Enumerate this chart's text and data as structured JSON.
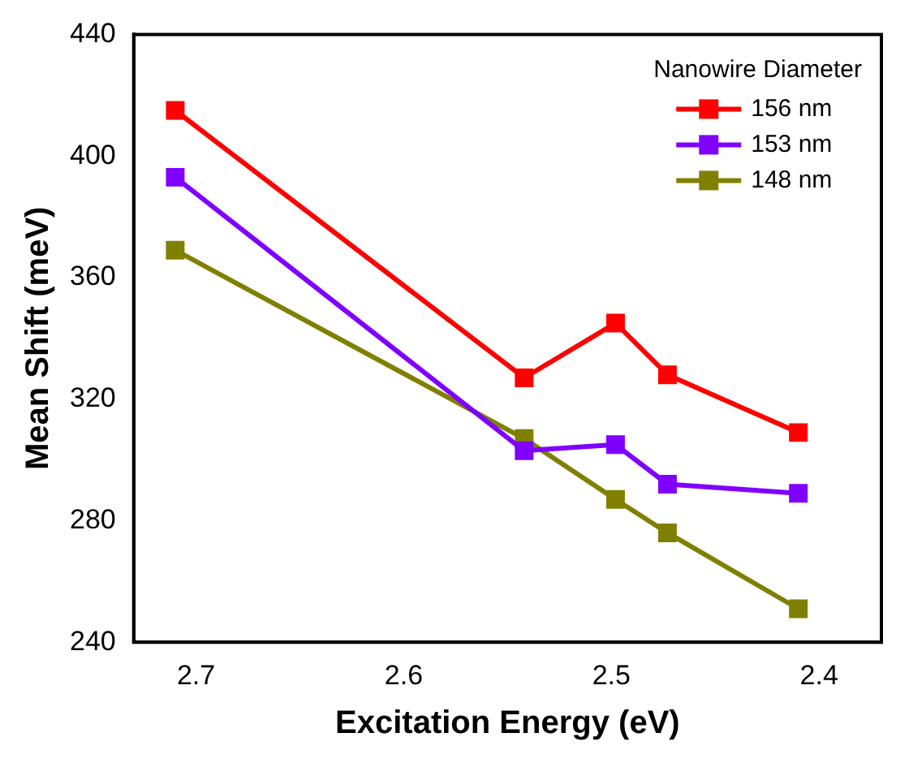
{
  "chart_data": {
    "type": "line",
    "xlabel": "Excitation Energy (eV)",
    "ylabel": "Mean Shift (meV)",
    "legend_title": "Nanowire Diameter",
    "legend": "top right",
    "marker": "square",
    "line_style": "solid",
    "grid": false,
    "x": [
      2.71,
      2.542,
      2.498,
      2.473,
      2.41
    ],
    "xlim": [
      2.73,
      2.37
    ],
    "xticks": [
      2.7,
      2.6,
      2.5,
      2.4
    ],
    "ylim": [
      240,
      440
    ],
    "yticks": [
      240,
      280,
      320,
      360,
      400,
      440
    ],
    "series": [
      {
        "name": "156 nm",
        "color": "#ff0000",
        "values": [
          415,
          327,
          345,
          328,
          309
        ]
      },
      {
        "name": "153 nm",
        "color": "#8000ff",
        "values": [
          393,
          303,
          305,
          292,
          289
        ]
      },
      {
        "name": "148 nm",
        "color": "#808000",
        "values": [
          369,
          307,
          287,
          276,
          251
        ]
      }
    ]
  }
}
